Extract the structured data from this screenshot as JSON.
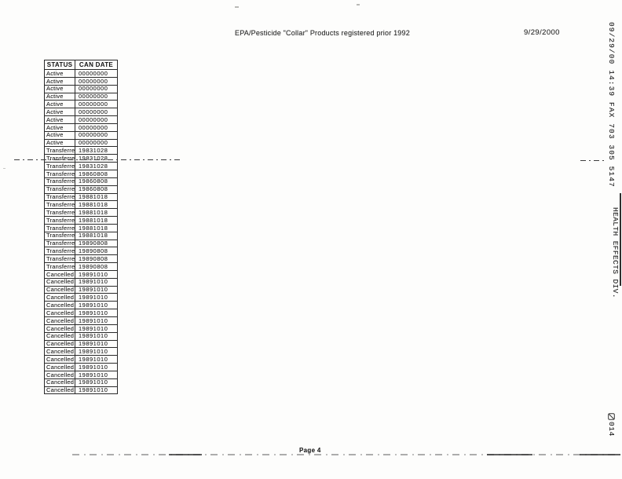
{
  "header": {
    "title": "EPA/Pesticide \"Collar\" Products registered prior 1992",
    "date": "9/29/2000"
  },
  "fax": {
    "stamp_line": "09/29/00 14:39 FAX 703 305 5147",
    "department": "HEALTH EFFECTS DIV.",
    "page_stamp_number": "014",
    "page_stamp_icon": "fax-page-stamp-icon"
  },
  "footer": {
    "page_label": "Page 4"
  },
  "table": {
    "columns": [
      "STATUS",
      "CAN DATE"
    ],
    "rows": [
      {
        "status": "Active",
        "can_date": "00000000"
      },
      {
        "status": "Active",
        "can_date": "00000000"
      },
      {
        "status": "Active",
        "can_date": "00000000"
      },
      {
        "status": "Active",
        "can_date": "00000000"
      },
      {
        "status": "Active",
        "can_date": "00000000"
      },
      {
        "status": "Active",
        "can_date": "00000000"
      },
      {
        "status": "Active",
        "can_date": "00000000"
      },
      {
        "status": "Active",
        "can_date": "00000000"
      },
      {
        "status": "Active",
        "can_date": "00000000"
      },
      {
        "status": "Active",
        "can_date": "00000000"
      },
      {
        "status": "Transferre",
        "can_date": "19831028"
      },
      {
        "status": "Transferre",
        "can_date": "19831028"
      },
      {
        "status": "Transferre",
        "can_date": "19831028"
      },
      {
        "status": "Transferre",
        "can_date": "19860808"
      },
      {
        "status": "Transferre",
        "can_date": "19860808"
      },
      {
        "status": "Transferre",
        "can_date": "19860808"
      },
      {
        "status": "Transferre",
        "can_date": "19881018"
      },
      {
        "status": "Transferre",
        "can_date": "19881018"
      },
      {
        "status": "Transferre",
        "can_date": "19881018"
      },
      {
        "status": "Transferre",
        "can_date": "19881018"
      },
      {
        "status": "Transferre",
        "can_date": "19881018"
      },
      {
        "status": "Transferre",
        "can_date": "19881018"
      },
      {
        "status": "Transferre",
        "can_date": "19890808"
      },
      {
        "status": "Transferre",
        "can_date": "19890808"
      },
      {
        "status": "Transferre",
        "can_date": "19890808"
      },
      {
        "status": "Transferre",
        "can_date": "19890808"
      },
      {
        "status": "Cancelled",
        "can_date": "19891010"
      },
      {
        "status": "Cancelled",
        "can_date": "19891010"
      },
      {
        "status": "Cancelled",
        "can_date": "19891010"
      },
      {
        "status": "Cancelled",
        "can_date": "19891010"
      },
      {
        "status": "Cancelled",
        "can_date": "19891010"
      },
      {
        "status": "Cancelled",
        "can_date": "19891010"
      },
      {
        "status": "Cancelled",
        "can_date": "19891010"
      },
      {
        "status": "Cancelled",
        "can_date": "19891010"
      },
      {
        "status": "Cancelled",
        "can_date": "19891010"
      },
      {
        "status": "Cancelled",
        "can_date": "19891010"
      },
      {
        "status": "Cancelled",
        "can_date": "19891010"
      },
      {
        "status": "Cancelled",
        "can_date": "19891010"
      },
      {
        "status": "Cancelled",
        "can_date": "19891010"
      },
      {
        "status": "Cancelled",
        "can_date": "19891010"
      },
      {
        "status": "Cancelled",
        "can_date": "19891010"
      },
      {
        "status": "Cancelled",
        "can_date": "19891010"
      }
    ]
  }
}
